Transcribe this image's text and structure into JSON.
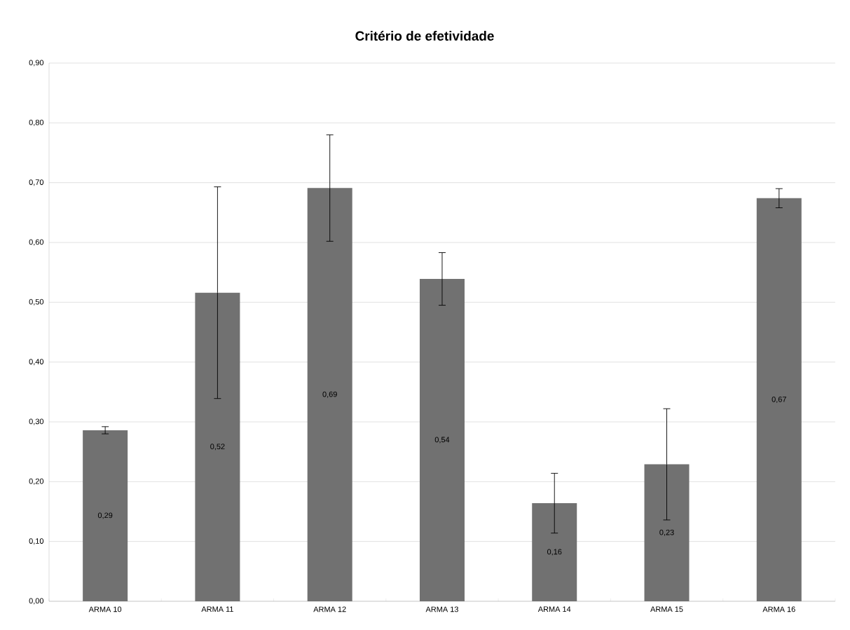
{
  "chart_data": {
    "type": "bar",
    "title": "Critério de efetividade",
    "categories": [
      "ARMA 10",
      "ARMA 11",
      "ARMA 12",
      "ARMA 13",
      "ARMA 14",
      "ARMA 15",
      "ARMA 16"
    ],
    "values": [
      0.286,
      0.516,
      0.691,
      0.539,
      0.164,
      0.229,
      0.674
    ],
    "errors": [
      0.006,
      0.177,
      0.089,
      0.044,
      0.05,
      0.093,
      0.016
    ],
    "value_labels": [
      "0,29",
      "0,52",
      "0,69",
      "0,54",
      "0,16",
      "0,23",
      "0,67"
    ],
    "color": "#717171",
    "ylim": [
      0,
      0.9
    ],
    "yticks": [
      {
        "value": 0,
        "label": "0,00"
      },
      {
        "value": 0.1,
        "label": "0,10"
      },
      {
        "value": 0.2,
        "label": "0,20"
      },
      {
        "value": 0.3,
        "label": "0,30"
      },
      {
        "value": 0.4,
        "label": "0,40"
      },
      {
        "value": 0.5,
        "label": "0,50"
      },
      {
        "value": 0.6,
        "label": "0,60"
      },
      {
        "value": 0.7,
        "label": "0,70"
      },
      {
        "value": 0.8,
        "label": "0,80"
      },
      {
        "value": 0.9,
        "label": "0,90"
      }
    ],
    "grid": "y"
  }
}
